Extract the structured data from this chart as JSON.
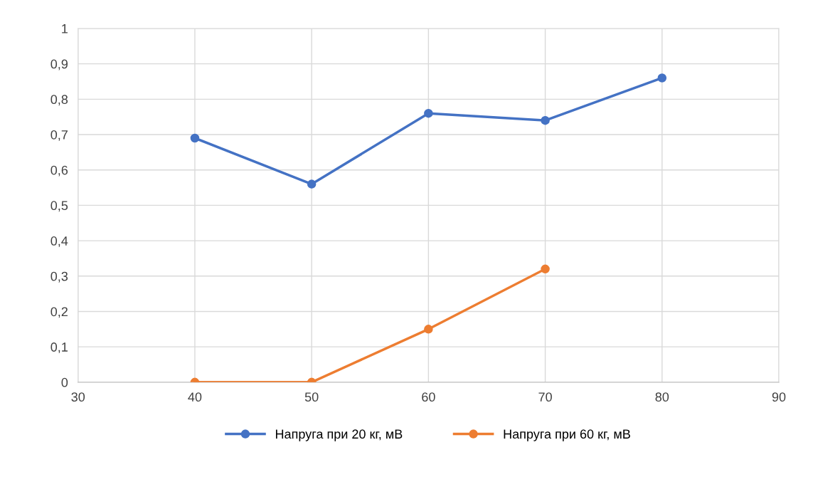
{
  "chart_data": {
    "type": "line",
    "x": [
      40,
      50,
      60,
      70,
      80
    ],
    "series": [
      {
        "name": "Напруга при 20 кг, мВ",
        "color": "#4472c4",
        "values": [
          0.69,
          0.56,
          0.76,
          0.74,
          0.86
        ]
      },
      {
        "name": "Напруга при 60 кг, мВ",
        "color": "#ed7d31",
        "values": [
          0,
          0,
          0.15,
          0.32,
          null
        ]
      }
    ],
    "xlim": [
      30,
      90
    ],
    "xticks": [
      30,
      40,
      50,
      60,
      70,
      80,
      90
    ],
    "ylim": [
      0,
      1
    ],
    "yticks": [
      0,
      {
        "value": 0.1,
        "label": "0,1"
      },
      {
        "value": 0.2,
        "label": "0,2"
      },
      {
        "value": 0.3,
        "label": "0,3"
      },
      {
        "value": 0.4,
        "label": "0,4"
      },
      {
        "value": 0.5,
        "label": "0,5"
      },
      {
        "value": 0.6,
        "label": "0,6"
      },
      {
        "value": 0.7,
        "label": "0,7"
      },
      {
        "value": 0.8,
        "label": "0,8"
      },
      {
        "value": 0.9,
        "label": "0,9"
      },
      1
    ],
    "grid": true,
    "legend": "bottom",
    "marker": "circle",
    "line_style": "solid"
  }
}
